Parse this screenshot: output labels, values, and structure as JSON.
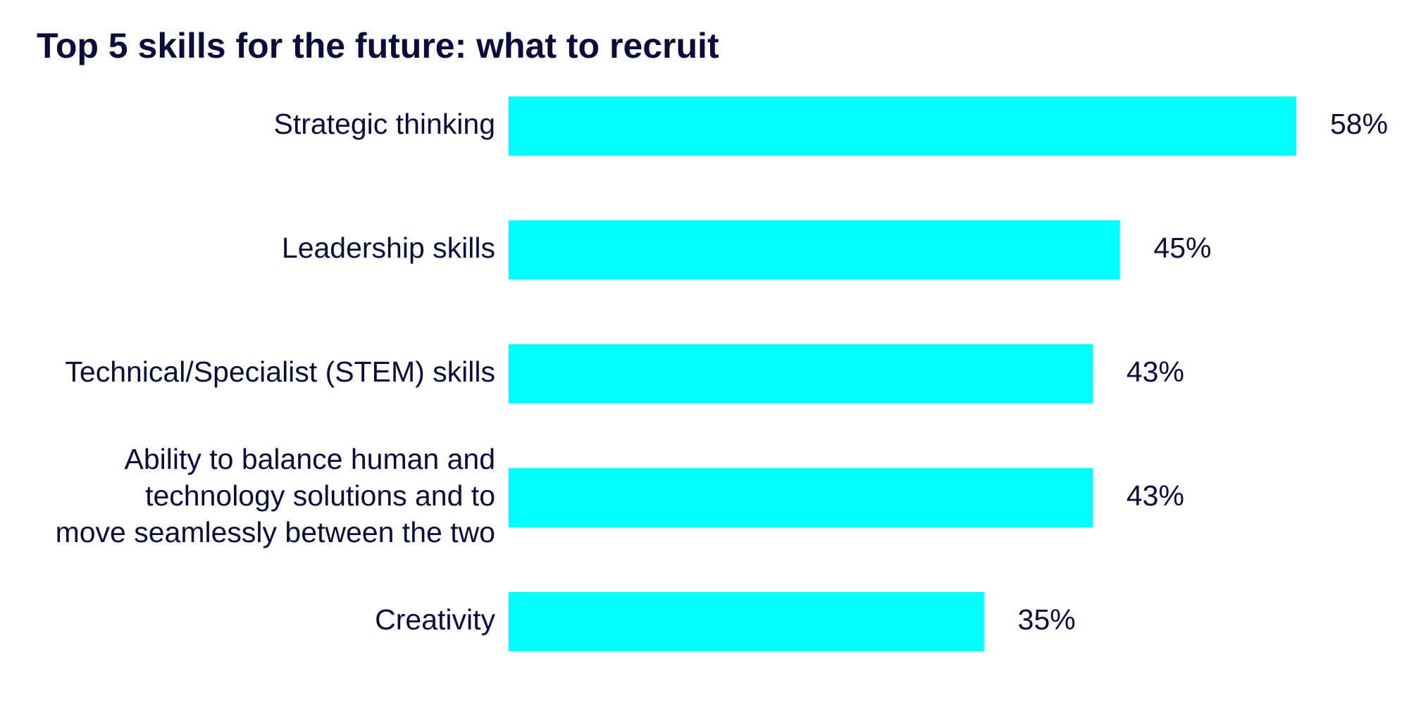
{
  "chart_data": {
    "type": "bar",
    "orientation": "horizontal",
    "title": "Top 5 skills for the future: what to recruit",
    "categories": [
      [
        "Strategic thinking"
      ],
      [
        "Leadership skills"
      ],
      [
        "Technical/Specialist (STEM) skills"
      ],
      [
        "Ability to balance human and",
        "technology solutions and to",
        "move seamlessly between the two"
      ],
      [
        "Creativity"
      ]
    ],
    "values": [
      58,
      45,
      43,
      43,
      35
    ],
    "value_labels": [
      "58%",
      "45%",
      "43%",
      "43%",
      "35%"
    ],
    "unit": "%",
    "xlim": [
      0,
      58
    ],
    "grid": false,
    "legend": "none",
    "colors": {
      "bar": "#00ffff",
      "text": "#0b0c3a",
      "background": "#ffffff"
    }
  }
}
